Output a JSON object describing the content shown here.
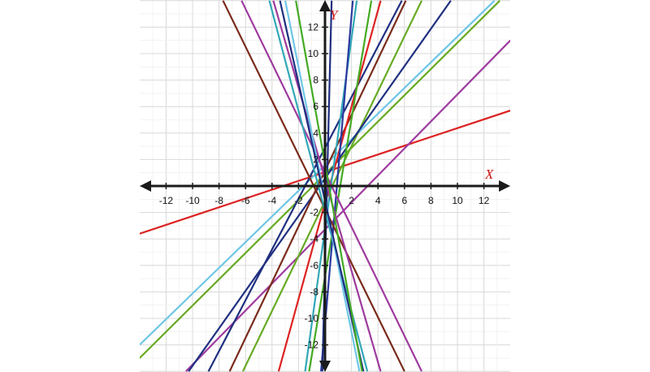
{
  "chart_data": {
    "type": "line",
    "title": "",
    "xlabel": "X",
    "ylabel": "Y",
    "xlim": [
      -14,
      14
    ],
    "ylim": [
      -14,
      14
    ],
    "grid": true,
    "x_ticks": [
      -12,
      -10,
      -8,
      -6,
      -4,
      -2,
      2,
      4,
      6,
      8,
      10,
      12
    ],
    "y_ticks": [
      12,
      10,
      8,
      6,
      4,
      2,
      -2,
      -4,
      -6,
      -8,
      -10,
      -12
    ],
    "x_tick_labels": [
      "-12",
      "-10",
      "-8",
      "-6",
      "-4",
      "-2",
      "2",
      "4",
      "6",
      "8",
      "10",
      "12"
    ],
    "y_tick_labels": [
      "12",
      "10",
      "8",
      "6",
      "4",
      "2",
      "-2",
      "-4",
      "-6",
      "-8",
      "-10",
      "-12"
    ],
    "series": [
      {
        "color": "#dd2222",
        "x": [
          -14,
          14
        ],
        "y": [
          -3.6,
          5.7
        ]
      },
      {
        "color": "#9e3a9e",
        "x": [
          -10.5,
          14
        ],
        "y": [
          -14,
          11
        ]
      },
      {
        "color": "#6ec6e6",
        "x": [
          -14,
          12.8
        ],
        "y": [
          -12,
          14
        ]
      },
      {
        "color": "#66aa22",
        "x": [
          -14,
          13.2
        ],
        "y": [
          -13,
          14
        ]
      },
      {
        "color": "#66aa22",
        "x": [
          -6.2,
          7.3
        ],
        "y": [
          -14,
          14
        ]
      },
      {
        "color": "#1f2f80",
        "x": [
          -10.3,
          9.5
        ],
        "y": [
          -14,
          14
        ]
      },
      {
        "color": "#1f2f80",
        "x": [
          -8.8,
          5.8
        ],
        "y": [
          -14,
          14
        ]
      },
      {
        "color": "#7a2a1a",
        "x": [
          -7.2,
          6.1
        ],
        "y": [
          -14,
          14
        ]
      },
      {
        "color": "#dd2222",
        "x": [
          -3.5,
          4.2
        ],
        "y": [
          -14,
          14
        ]
      },
      {
        "color": "#33a8b8",
        "x": [
          -1.5,
          2.4
        ],
        "y": [
          -14,
          14
        ]
      },
      {
        "color": "#44aa22",
        "x": [
          -1.2,
          3.5
        ],
        "y": [
          -14,
          14
        ]
      },
      {
        "color": "#2a3aa0",
        "x": [
          -0.3,
          2.1
        ],
        "y": [
          -14,
          14
        ]
      },
      {
        "color": "#1f2f80",
        "x": [
          -0.2,
          0.5
        ],
        "y": [
          -14,
          14
        ]
      },
      {
        "color": "#7a2a1a",
        "x": [
          -7.7,
          6.0
        ],
        "y": [
          14,
          -14
        ]
      },
      {
        "color": "#9e3a9e",
        "x": [
          -6.3,
          7.3
        ],
        "y": [
          14,
          -14
        ]
      },
      {
        "color": "#9e3a9e",
        "x": [
          -3.9,
          4.2
        ],
        "y": [
          14,
          -14
        ]
      },
      {
        "color": "#33a8b8",
        "x": [
          -4.2,
          3.2
        ],
        "y": [
          14,
          -14
        ]
      },
      {
        "color": "#6ec6e6",
        "x": [
          -3.0,
          2.6
        ],
        "y": [
          14,
          -14
        ]
      },
      {
        "color": "#1f2f80",
        "x": [
          -3.4,
          2.9
        ],
        "y": [
          14,
          -14
        ]
      },
      {
        "color": "#44aa22",
        "x": [
          -2.2,
          2.8
        ],
        "y": [
          14,
          -14
        ]
      }
    ]
  }
}
